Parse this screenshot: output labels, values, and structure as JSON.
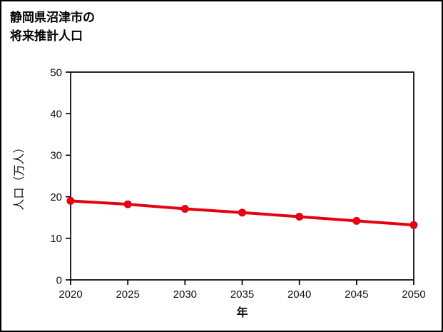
{
  "page": {
    "background": "#ffffff",
    "border_color": "#000000"
  },
  "title": {
    "line1": "静岡県沼津市の",
    "line2": "将来推計人口"
  },
  "chart_data": {
    "type": "line",
    "x": [
      2020,
      2025,
      2030,
      2035,
      2040,
      2045,
      2050
    ],
    "series": [
      {
        "name": "将来推計人口",
        "values": [
          19.0,
          18.2,
          17.1,
          16.2,
          15.2,
          14.2,
          13.2
        ]
      }
    ],
    "title": "静岡県沼津市の将来推計人口",
    "xlabel": "年",
    "ylabel": "人口（万人）",
    "xlim": [
      2020,
      2050
    ],
    "ylim": [
      0,
      50
    ],
    "xticks": [
      2020,
      2025,
      2030,
      2035,
      2040,
      2045,
      2050
    ],
    "yticks": [
      0,
      10,
      20,
      30,
      40,
      50
    ],
    "grid": false,
    "legend": "none",
    "line_color": "#e60012",
    "marker": "circle",
    "axis_color": "#000000"
  }
}
